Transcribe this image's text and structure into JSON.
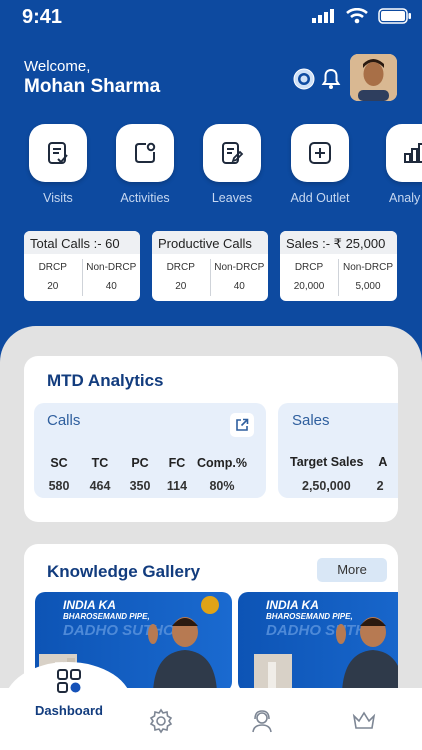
{
  "status_bar": {
    "time": "9:41"
  },
  "header": {
    "welcome": "Welcome,",
    "user_name": "Mohan Sharma"
  },
  "quick_actions": [
    {
      "label": "Visits",
      "icon": "visits-icon"
    },
    {
      "label": "Activities",
      "icon": "activities-icon"
    },
    {
      "label": "Leaves",
      "icon": "leaves-icon"
    },
    {
      "label": "Add Outlet",
      "icon": "add-outlet-icon"
    },
    {
      "label": "Analy",
      "icon": "analytics-icon"
    }
  ],
  "summary": [
    {
      "title": "Total Calls :- 60",
      "col1_label": "DRCP",
      "col1_value": "20",
      "col2_label": "Non-DRCP",
      "col2_value": "40"
    },
    {
      "title": "Productive Calls",
      "col1_label": "DRCP",
      "col1_value": "20",
      "col2_label": "Non-DRCP",
      "col2_value": "40"
    },
    {
      "title": "Sales :- ₹ 25,000",
      "col1_label": "DRCP",
      "col1_value": "20,000",
      "col2_label": "Non-DRCP",
      "col2_value": "5,000"
    }
  ],
  "mtd": {
    "title": "MTD Analytics",
    "calls": {
      "title": "Calls",
      "headers": [
        "SC",
        "TC",
        "PC",
        "FC",
        "Comp.%"
      ],
      "values": [
        "580",
        "464",
        "350",
        "114",
        "80%"
      ]
    },
    "sales": {
      "title": "Sales",
      "headers": [
        "Target Sales",
        "A"
      ],
      "values": [
        "2,50,000",
        "2"
      ]
    }
  },
  "gallery": {
    "title": "Knowledge Gallery",
    "more_label": "More",
    "banners": [
      {
        "line1": "INDIA KA",
        "line2": "BHAROSEMAND PIPE,",
        "line3": "DADHO SUTHO!"
      },
      {
        "line1": "INDIA KA",
        "line2": "BHAROSEMAND PIPE,",
        "line3": "DADHO SUTHO!"
      }
    ]
  },
  "nav": {
    "dashboard_label": "Dashboard"
  },
  "colors": {
    "primary": "#0d4aa0",
    "heading": "#123c7e",
    "card_tint": "#e7effa"
  }
}
